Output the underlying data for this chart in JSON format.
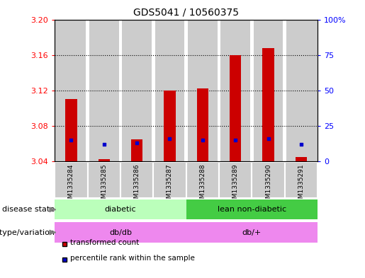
{
  "title": "GDS5041 / 10560375",
  "samples": [
    "GSM1335284",
    "GSM1335285",
    "GSM1335286",
    "GSM1335287",
    "GSM1335288",
    "GSM1335289",
    "GSM1335290",
    "GSM1335291"
  ],
  "transformed_count": [
    3.11,
    3.042,
    3.065,
    3.12,
    3.122,
    3.16,
    3.168,
    3.045
  ],
  "percentile_rank": [
    15,
    12,
    13,
    16,
    15,
    15,
    16,
    12
  ],
  "ylim_left": [
    3.04,
    3.2
  ],
  "ylim_right": [
    0,
    100
  ],
  "yticks_left": [
    3.04,
    3.08,
    3.12,
    3.16,
    3.2
  ],
  "yticks_right": [
    0,
    25,
    50,
    75,
    100
  ],
  "ytick_labels_right": [
    "0",
    "25",
    "50",
    "75",
    "100%"
  ],
  "bar_color": "#cc0000",
  "dot_color": "#0000cc",
  "base_value": 3.04,
  "col_bg_color": "#cccccc",
  "plot_bg_color": "#ffffff",
  "disease_state_groups": [
    {
      "label": "diabetic",
      "start": 0,
      "end": 4,
      "color": "#bbffbb"
    },
    {
      "label": "lean non-diabetic",
      "start": 4,
      "end": 8,
      "color": "#44cc44"
    }
  ],
  "genotype_groups": [
    {
      "label": "db/db",
      "start": 0,
      "end": 4,
      "color": "#ee88ee"
    },
    {
      "label": "db/+",
      "start": 4,
      "end": 8,
      "color": "#ee88ee"
    }
  ],
  "legend_items": [
    {
      "color": "#cc0000",
      "label": "transformed count"
    },
    {
      "color": "#0000cc",
      "label": "percentile rank within the sample"
    }
  ],
  "label_disease_state": "disease state",
  "label_genotype": "genotype/variation",
  "bar_width": 0.35
}
